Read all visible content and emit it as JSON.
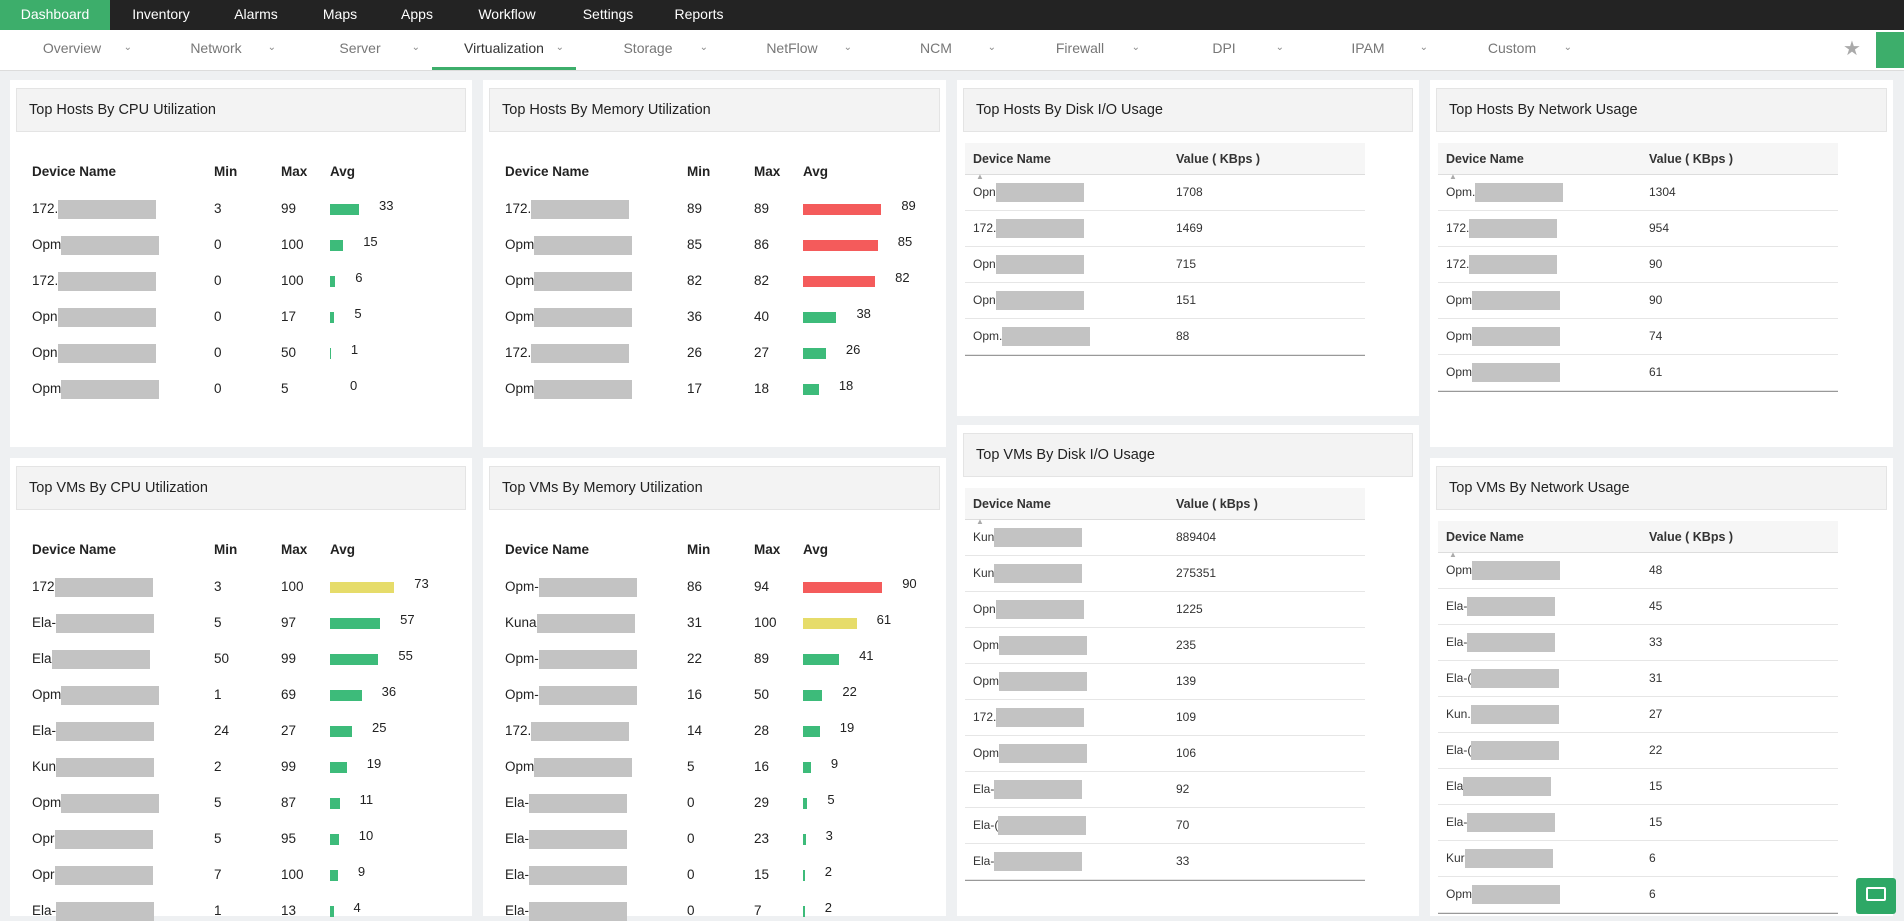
{
  "nav": {
    "tabs": [
      "Dashboard",
      "Inventory",
      "Alarms",
      "Maps",
      "Apps",
      "Workflow",
      "Settings",
      "Reports"
    ],
    "active": 0
  },
  "subnav": {
    "tabs": [
      "Overview",
      "Network",
      "Server",
      "Virtualization",
      "Storage",
      "NetFlow",
      "NCM",
      "Firewall",
      "DPI",
      "IPAM",
      "Custom"
    ],
    "active": 3
  },
  "bar_colors": {
    "critical": "#f45b5b",
    "warning": "#e6dc6a",
    "normal": "#3dbb7a"
  },
  "widgets": [
    {
      "title": "Top Hosts By CPU Utilization",
      "columns": [
        "Device Name",
        "Min",
        "Max",
        "Avg"
      ],
      "rows": [
        [
          "172.",
          3,
          99,
          33
        ],
        [
          "Opm",
          0,
          100,
          15
        ],
        [
          "172.",
          0,
          100,
          6
        ],
        [
          "Opn",
          0,
          17,
          5
        ],
        [
          "Opn",
          0,
          50,
          1
        ],
        [
          "Opm",
          0,
          5,
          0
        ]
      ]
    },
    {
      "title": "Top Hosts By Memory Utilization",
      "columns": [
        "Device Name",
        "Min",
        "Max",
        "Avg"
      ],
      "rows": [
        [
          "172.",
          89,
          89,
          89
        ],
        [
          "Opm",
          85,
          86,
          85
        ],
        [
          "Opm",
          82,
          82,
          82
        ],
        [
          "Opm",
          36,
          40,
          38
        ],
        [
          "172.",
          26,
          27,
          26
        ],
        [
          "Opm",
          17,
          18,
          18
        ]
      ]
    },
    {
      "title": "Top Hosts By Disk I/O Usage",
      "columns": [
        "Device Name",
        "Value ( KBps )"
      ],
      "rows": [
        [
          "Opn",
          1708
        ],
        [
          "172.",
          1469
        ],
        [
          "Opn",
          715
        ],
        [
          "Opn",
          151
        ],
        [
          "Opm.",
          88
        ]
      ]
    },
    {
      "title": "Top Hosts By Network Usage",
      "columns": [
        "Device Name",
        "Value ( KBps )"
      ],
      "rows": [
        [
          "Opm.",
          1304
        ],
        [
          "172.",
          954
        ],
        [
          "172.",
          90
        ],
        [
          "Opm",
          90
        ],
        [
          "Opm",
          74
        ],
        [
          "Opm",
          61
        ]
      ]
    },
    {
      "title": "Top VMs By CPU Utilization",
      "columns": [
        "Device Name",
        "Min",
        "Max",
        "Avg"
      ],
      "rows": [
        [
          "172",
          3,
          100,
          73
        ],
        [
          "Ela-",
          5,
          97,
          57
        ],
        [
          "Ela",
          50,
          99,
          55
        ],
        [
          "Opm",
          1,
          69,
          36
        ],
        [
          "Ela-",
          24,
          27,
          25
        ],
        [
          "Kun",
          2,
          99,
          19
        ],
        [
          "Opm",
          5,
          87,
          11
        ],
        [
          "Opr",
          5,
          95,
          10
        ],
        [
          "Opr",
          7,
          100,
          9
        ],
        [
          "Ela-",
          1,
          13,
          4
        ]
      ]
    },
    {
      "title": "Top VMs By Memory Utilization",
      "columns": [
        "Device Name",
        "Min",
        "Max",
        "Avg"
      ],
      "rows": [
        [
          "Opm-",
          86,
          94,
          90
        ],
        [
          "Kuna",
          31,
          100,
          61
        ],
        [
          "Opm-",
          22,
          89,
          41
        ],
        [
          "Opm-",
          16,
          50,
          22
        ],
        [
          "172.",
          14,
          28,
          19
        ],
        [
          "Opm",
          5,
          16,
          9
        ],
        [
          "Ela-",
          0,
          29,
          5
        ],
        [
          "Ela-",
          0,
          23,
          3
        ],
        [
          "Ela-",
          0,
          15,
          2
        ],
        [
          "Ela-",
          0,
          7,
          2
        ]
      ]
    },
    {
      "title": "Top VMs By Disk I/O Usage",
      "columns": [
        "Device Name",
        "Value ( kBps )"
      ],
      "rows": [
        [
          "Kun",
          889404
        ],
        [
          "Kun",
          275351
        ],
        [
          "Opn",
          1225
        ],
        [
          "Opm",
          235
        ],
        [
          "Opm",
          139
        ],
        [
          "172.",
          109
        ],
        [
          "Opm",
          106
        ],
        [
          "Ela-",
          92
        ],
        [
          "Ela-(",
          70
        ],
        [
          "Ela-",
          33
        ]
      ]
    },
    {
      "title": "Top VMs By Network Usage",
      "columns": [
        "Device Name",
        "Value ( KBps )"
      ],
      "rows": [
        [
          "Opm",
          48
        ],
        [
          "Ela-",
          45
        ],
        [
          "Ela-",
          33
        ],
        [
          "Ela-(",
          31
        ],
        [
          "Kun.",
          27
        ],
        [
          "Ela-(",
          22
        ],
        [
          "Ela",
          15
        ],
        [
          "Ela-",
          15
        ],
        [
          "Kur",
          6
        ],
        [
          "Opm",
          6
        ]
      ]
    }
  ]
}
